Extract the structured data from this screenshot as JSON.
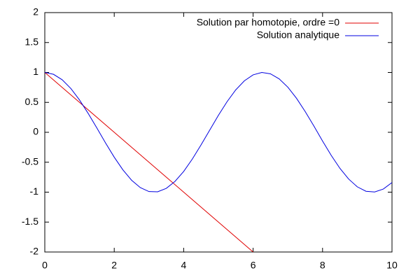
{
  "chart_data": {
    "type": "line",
    "xlim": [
      0,
      10
    ],
    "ylim": [
      -2,
      2
    ],
    "xticks": [
      0,
      2,
      4,
      6,
      8,
      10
    ],
    "yticks": [
      -2,
      -1.5,
      -1,
      -0.5,
      0,
      0.5,
      1,
      1.5,
      2
    ],
    "legend": "upper-right",
    "series": [
      {
        "name": "Solution par homotopie, ordre =0",
        "color": "#e00000",
        "x": [
          0,
          1,
          2,
          3,
          4,
          5,
          6
        ],
        "values": [
          1,
          0.5,
          0,
          -0.5,
          -1,
          -1.5,
          -2
        ]
      },
      {
        "name": "Solution analytique",
        "color": "#0000e0",
        "x": [
          0,
          0.25,
          0.5,
          0.75,
          1,
          1.25,
          1.5,
          1.75,
          2,
          2.25,
          2.5,
          2.75,
          3,
          3.25,
          3.5,
          3.75,
          4,
          4.25,
          4.5,
          4.75,
          5,
          5.25,
          5.5,
          5.75,
          6,
          6.25,
          6.5,
          6.75,
          7,
          7.25,
          7.5,
          7.75,
          8,
          8.25,
          8.5,
          8.75,
          9,
          9.25,
          9.5,
          9.75,
          10
        ],
        "values": [
          1,
          0.969,
          0.878,
          0.732,
          0.54,
          0.315,
          0.071,
          -0.178,
          -0.416,
          -0.628,
          -0.801,
          -0.924,
          -0.99,
          -0.994,
          -0.936,
          -0.82,
          -0.654,
          -0.446,
          -0.211,
          0.037,
          0.284,
          0.512,
          0.709,
          0.861,
          0.96,
          1,
          0.977,
          0.893,
          0.754,
          0.568,
          0.347,
          0.105,
          -0.146,
          -0.386,
          -0.602,
          -0.78,
          -0.911,
          -0.985,
          -0.997,
          -0.948,
          -0.839
        ]
      }
    ]
  }
}
